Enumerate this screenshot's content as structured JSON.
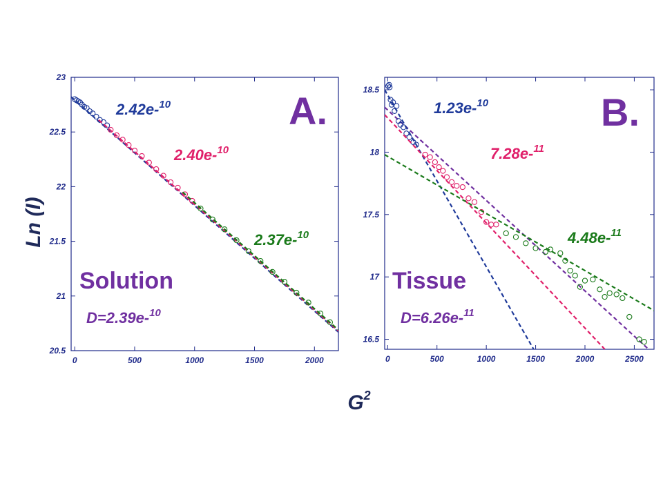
{
  "figure": {
    "ylabel_main": "Ln (",
    "ylabel_var": "I",
    "ylabel_close": ")",
    "xlabel_main": "G",
    "xlabel_sup": "2"
  },
  "colors": {
    "blue": "#1f3a9a",
    "red": "#e0206a",
    "green": "#1a7a1a",
    "purple": "#7030a0",
    "navy": "#1f2a8a"
  },
  "chart_data": [
    {
      "type": "scatter",
      "panel": "A.",
      "sample": "Solution",
      "xlim": [
        -30,
        2200
      ],
      "ylim": [
        20.5,
        23.0
      ],
      "x_ticks": [
        0,
        500,
        1000,
        1500,
        2000
      ],
      "y_ticks": [
        20.5,
        21,
        21.5,
        22,
        22.5,
        23
      ],
      "x_tick_labels": [
        "0",
        "500",
        "1000",
        "1500",
        "2000"
      ],
      "y_tick_labels": [
        "20.5",
        "21",
        "21.5",
        "22",
        "22.5",
        "23"
      ],
      "fit_label": {
        "prefix": "D=",
        "base": "2.39e-",
        "exp": "10"
      },
      "series": [
        {
          "color_key": "blue",
          "annotation": {
            "base": "2.42e-",
            "exp": "10"
          },
          "fit": {
            "x0": -30,
            "y0": 22.82,
            "x1": 2200,
            "y1": 20.67
          },
          "points": [
            [
              0,
              22.8
            ],
            [
              15,
              22.79
            ],
            [
              30,
              22.78
            ],
            [
              45,
              22.77
            ],
            [
              60,
              22.75
            ],
            [
              80,
              22.73
            ],
            [
              100,
              22.72
            ],
            [
              125,
              22.69
            ],
            [
              150,
              22.67
            ],
            [
              180,
              22.64
            ],
            [
              210,
              22.61
            ],
            [
              240,
              22.59
            ],
            [
              270,
              22.56
            ]
          ]
        },
        {
          "color_key": "red",
          "annotation": {
            "base": "2.40e-",
            "exp": "10"
          },
          "fit": {
            "x0": 200,
            "y0": 22.61,
            "x1": 2200,
            "y1": 20.68
          },
          "points": [
            [
              300,
              22.52
            ],
            [
              350,
              22.47
            ],
            [
              400,
              22.43
            ],
            [
              450,
              22.38
            ],
            [
              500,
              22.33
            ],
            [
              560,
              22.28
            ],
            [
              620,
              22.22
            ],
            [
              680,
              22.16
            ],
            [
              740,
              22.1
            ],
            [
              800,
              22.04
            ],
            [
              860,
              21.99
            ],
            [
              920,
              21.93
            ],
            [
              980,
              21.87
            ]
          ]
        },
        {
          "color_key": "green",
          "annotation": {
            "base": "2.37e-",
            "exp": "10"
          },
          "fit": {
            "x0": 900,
            "y0": 21.95,
            "x1": 2200,
            "y1": 20.69
          },
          "points": [
            [
              1050,
              21.8
            ],
            [
              1150,
              21.7
            ],
            [
              1250,
              21.61
            ],
            [
              1350,
              21.51
            ],
            [
              1450,
              21.41
            ],
            [
              1550,
              21.32
            ],
            [
              1650,
              21.22
            ],
            [
              1750,
              21.13
            ],
            [
              1850,
              21.03
            ],
            [
              1950,
              20.94
            ],
            [
              2050,
              20.84
            ],
            [
              2130,
              20.76
            ]
          ]
        }
      ]
    },
    {
      "type": "scatter",
      "panel": "B.",
      "sample": "Tissue",
      "xlim": [
        -30,
        2700
      ],
      "ylim": [
        16.42,
        18.6
      ],
      "x_ticks": [
        0,
        500,
        1000,
        1500,
        2000,
        2500
      ],
      "y_ticks": [
        16.5,
        17,
        17.5,
        18,
        18.5
      ],
      "x_tick_labels": [
        "0",
        "500",
        "1000",
        "1500",
        "2000",
        "2500"
      ],
      "y_tick_labels": [
        "16.5",
        "17",
        "17.5",
        "18",
        "18.5"
      ],
      "fit_label": {
        "prefix": "D=",
        "base": "6.26e-",
        "exp": "11"
      },
      "extra_fit": {
        "color_key": "purple",
        "x0": -30,
        "y0": 18.36,
        "x1": 2700,
        "y1": 16.38
      },
      "series": [
        {
          "color_key": "blue",
          "annotation": {
            "base": "1.23e-",
            "exp": "10"
          },
          "fit": {
            "x0": -30,
            "y0": 18.5,
            "x1": 1480,
            "y1": 16.42
          },
          "points": [
            [
              5,
              18.53
            ],
            [
              15,
              18.54
            ],
            [
              20,
              18.52
            ],
            [
              30,
              18.42
            ],
            [
              40,
              18.38
            ],
            [
              55,
              18.4
            ],
            [
              70,
              18.33
            ],
            [
              90,
              18.37
            ],
            [
              110,
              18.25
            ],
            [
              130,
              18.22
            ],
            [
              160,
              18.2
            ],
            [
              190,
              18.15
            ],
            [
              220,
              18.12
            ],
            [
              260,
              18.08
            ],
            [
              290,
              18.06
            ]
          ]
        },
        {
          "color_key": "red",
          "annotation": {
            "base": "7.28e-",
            "exp": "11"
          },
          "fit": {
            "x0": -30,
            "y0": 18.3,
            "x1": 2700,
            "y1": 16.0
          },
          "points": [
            [
              380,
              17.98
            ],
            [
              430,
              17.96
            ],
            [
              480,
              17.92
            ],
            [
              520,
              17.88
            ],
            [
              560,
              17.85
            ],
            [
              600,
              17.8
            ],
            [
              650,
              17.76
            ],
            [
              700,
              17.73
            ],
            [
              760,
              17.72
            ],
            [
              820,
              17.63
            ],
            [
              880,
              17.6
            ],
            [
              950,
              17.52
            ],
            [
              1000,
              17.44
            ],
            [
              1050,
              17.42
            ],
            [
              1100,
              17.42
            ]
          ]
        },
        {
          "color_key": "green",
          "annotation": {
            "base": "4.48e-",
            "exp": "11"
          },
          "fit": {
            "x0": -30,
            "y0": 17.98,
            "x1": 2700,
            "y1": 16.73
          },
          "points": [
            [
              1200,
              17.35
            ],
            [
              1300,
              17.32
            ],
            [
              1400,
              17.27
            ],
            [
              1500,
              17.23
            ],
            [
              1600,
              17.2
            ],
            [
              1650,
              17.22
            ],
            [
              1750,
              17.19
            ],
            [
              1800,
              17.13
            ],
            [
              1850,
              17.05
            ],
            [
              1900,
              17.01
            ],
            [
              1950,
              16.92
            ],
            [
              2000,
              16.97
            ],
            [
              2080,
              16.98
            ],
            [
              2150,
              16.9
            ],
            [
              2200,
              16.84
            ],
            [
              2250,
              16.87
            ],
            [
              2320,
              16.86
            ],
            [
              2380,
              16.83
            ],
            [
              2450,
              16.68
            ],
            [
              2550,
              16.5
            ],
            [
              2600,
              16.48
            ]
          ]
        }
      ]
    }
  ]
}
